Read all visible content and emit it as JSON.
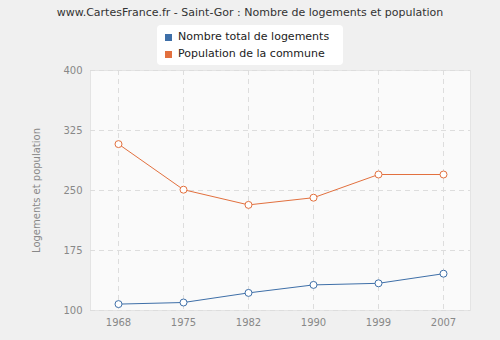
{
  "chart_data": {
    "type": "line",
    "title": "www.CartesFrance.fr - Saint-Gor : Nombre de logements et population",
    "y_label": "Logements et population",
    "categories": [
      "1968",
      "1975",
      "1982",
      "1990",
      "1999",
      "2007"
    ],
    "series": [
      {
        "name": "Nombre total de logements",
        "color": "#3e6fa8",
        "marker": "circle",
        "line_style": "solid",
        "values": [
          108,
          110,
          122,
          132,
          134,
          146
        ]
      },
      {
        "name": "Population de la commune",
        "color": "#e2703e",
        "marker": "circle",
        "line_style": "solid",
        "values": [
          308,
          251,
          232,
          241,
          270,
          270
        ]
      }
    ],
    "ylim": [
      100,
      400
    ],
    "yticks": [
      100,
      175,
      250,
      325,
      400
    ],
    "grid": true,
    "legend": "top"
  }
}
